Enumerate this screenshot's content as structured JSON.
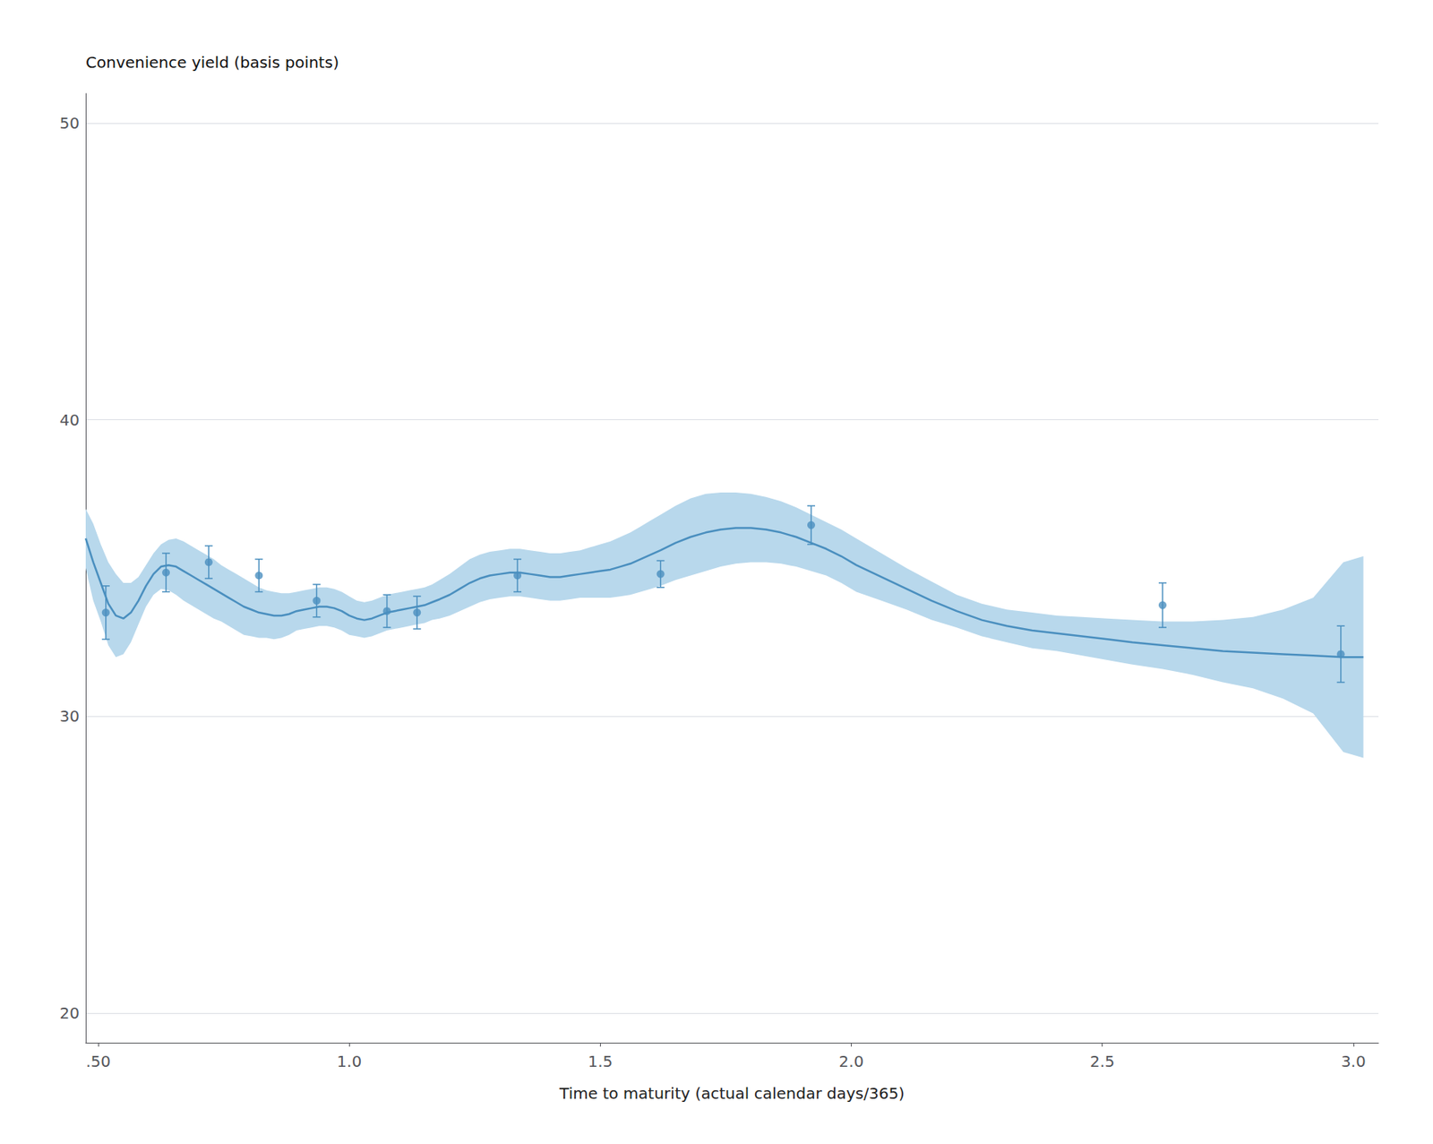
{
  "chart_data": {
    "type": "line",
    "xlabel": "Time to maturity (actual calendar days/365)",
    "ylabel": "Convenience yield (basis points)",
    "xlim": [
      0.475,
      3.05
    ],
    "ylim": [
      19,
      51
    ],
    "xticks": [
      {
        "value": 0.5,
        "label": ".50"
      },
      {
        "value": 1.0,
        "label": "1.0"
      },
      1.5,
      {
        "value": 2.0,
        "label": "2.0"
      },
      2.5,
      {
        "value": 3.0,
        "label": "3.0"
      }
    ],
    "yticks": [
      20,
      30,
      40,
      50
    ],
    "grid": "y",
    "series": [
      {
        "type": "band",
        "color": "#B8D8EC",
        "x": [
          0.475,
          0.49,
          0.505,
          0.52,
          0.535,
          0.55,
          0.565,
          0.58,
          0.595,
          0.61,
          0.625,
          0.64,
          0.655,
          0.67,
          0.685,
          0.7,
          0.715,
          0.73,
          0.745,
          0.76,
          0.775,
          0.79,
          0.805,
          0.82,
          0.835,
          0.85,
          0.865,
          0.88,
          0.895,
          0.91,
          0.925,
          0.94,
          0.955,
          0.97,
          0.985,
          1.0,
          1.015,
          1.03,
          1.045,
          1.06,
          1.075,
          1.09,
          1.105,
          1.12,
          1.135,
          1.15,
          1.165,
          1.18,
          1.2,
          1.22,
          1.24,
          1.26,
          1.28,
          1.3,
          1.32,
          1.34,
          1.36,
          1.38,
          1.4,
          1.42,
          1.44,
          1.46,
          1.48,
          1.5,
          1.52,
          1.54,
          1.56,
          1.58,
          1.6,
          1.62,
          1.65,
          1.68,
          1.71,
          1.74,
          1.77,
          1.8,
          1.83,
          1.86,
          1.89,
          1.92,
          1.95,
          1.98,
          2.01,
          2.06,
          2.11,
          2.16,
          2.21,
          2.26,
          2.31,
          2.36,
          2.41,
          2.46,
          2.51,
          2.56,
          2.62,
          2.68,
          2.74,
          2.8,
          2.86,
          2.92,
          2.98,
          3.02
        ],
        "upper": [
          37.0,
          36.5,
          35.8,
          35.2,
          34.8,
          34.5,
          34.5,
          34.7,
          35.1,
          35.5,
          35.8,
          35.95,
          36.0,
          35.9,
          35.75,
          35.6,
          35.45,
          35.3,
          35.1,
          34.95,
          34.8,
          34.65,
          34.5,
          34.35,
          34.25,
          34.2,
          34.15,
          34.15,
          34.2,
          34.25,
          34.3,
          34.35,
          34.35,
          34.3,
          34.2,
          34.05,
          33.9,
          33.85,
          33.9,
          34.0,
          34.1,
          34.15,
          34.2,
          34.25,
          34.3,
          34.35,
          34.45,
          34.6,
          34.8,
          35.05,
          35.3,
          35.45,
          35.55,
          35.6,
          35.65,
          35.65,
          35.6,
          35.55,
          35.5,
          35.5,
          35.55,
          35.6,
          35.7,
          35.8,
          35.9,
          36.05,
          36.2,
          36.4,
          36.6,
          36.8,
          37.1,
          37.35,
          37.5,
          37.55,
          37.55,
          37.5,
          37.4,
          37.25,
          37.05,
          36.8,
          36.55,
          36.3,
          36.0,
          35.5,
          35.0,
          34.55,
          34.1,
          33.8,
          33.6,
          33.5,
          33.4,
          33.35,
          33.3,
          33.25,
          33.2,
          33.2,
          33.25,
          33.35,
          33.6,
          34.0,
          35.2,
          35.4
        ],
        "lower": [
          35.0,
          33.9,
          33.2,
          32.4,
          32.0,
          32.1,
          32.5,
          33.1,
          33.7,
          34.1,
          34.3,
          34.25,
          34.1,
          33.9,
          33.75,
          33.6,
          33.45,
          33.3,
          33.2,
          33.05,
          32.9,
          32.75,
          32.7,
          32.65,
          32.65,
          32.6,
          32.65,
          32.75,
          32.9,
          32.95,
          33.0,
          33.05,
          33.05,
          33.0,
          32.9,
          32.75,
          32.7,
          32.65,
          32.7,
          32.8,
          32.9,
          32.95,
          33.0,
          33.05,
          33.1,
          33.15,
          33.25,
          33.3,
          33.4,
          33.55,
          33.7,
          33.85,
          33.95,
          34.0,
          34.05,
          34.05,
          34.0,
          33.95,
          33.9,
          33.9,
          33.95,
          34.0,
          34.0,
          34.0,
          34.0,
          34.05,
          34.1,
          34.2,
          34.3,
          34.4,
          34.6,
          34.75,
          34.9,
          35.05,
          35.15,
          35.2,
          35.2,
          35.15,
          35.05,
          34.9,
          34.75,
          34.5,
          34.2,
          33.9,
          33.6,
          33.25,
          33.0,
          32.7,
          32.5,
          32.3,
          32.2,
          32.05,
          31.9,
          31.75,
          31.6,
          31.4,
          31.15,
          30.95,
          30.6,
          30.1,
          28.8,
          28.6
        ]
      },
      {
        "type": "line",
        "color": "#4A8FBF",
        "x": [
          0.475,
          0.49,
          0.505,
          0.52,
          0.535,
          0.55,
          0.565,
          0.58,
          0.595,
          0.61,
          0.625,
          0.64,
          0.655,
          0.67,
          0.685,
          0.7,
          0.715,
          0.73,
          0.745,
          0.76,
          0.775,
          0.79,
          0.805,
          0.82,
          0.835,
          0.85,
          0.865,
          0.88,
          0.895,
          0.91,
          0.925,
          0.94,
          0.955,
          0.97,
          0.985,
          1.0,
          1.015,
          1.03,
          1.045,
          1.06,
          1.075,
          1.09,
          1.105,
          1.12,
          1.135,
          1.15,
          1.165,
          1.18,
          1.2,
          1.22,
          1.24,
          1.26,
          1.28,
          1.3,
          1.32,
          1.34,
          1.36,
          1.38,
          1.4,
          1.42,
          1.44,
          1.46,
          1.48,
          1.5,
          1.52,
          1.54,
          1.56,
          1.58,
          1.6,
          1.62,
          1.65,
          1.68,
          1.71,
          1.74,
          1.77,
          1.8,
          1.83,
          1.86,
          1.89,
          1.92,
          1.95,
          1.98,
          2.01,
          2.06,
          2.11,
          2.16,
          2.21,
          2.26,
          2.31,
          2.36,
          2.41,
          2.46,
          2.51,
          2.56,
          2.62,
          2.68,
          2.74,
          2.8,
          2.86,
          2.92,
          2.98,
          3.02
        ],
        "values": [
          36.0,
          35.2,
          34.5,
          33.8,
          33.4,
          33.3,
          33.5,
          33.9,
          34.4,
          34.8,
          35.05,
          35.1,
          35.05,
          34.9,
          34.75,
          34.6,
          34.45,
          34.3,
          34.15,
          34.0,
          33.85,
          33.7,
          33.6,
          33.5,
          33.45,
          33.4,
          33.4,
          33.45,
          33.55,
          33.6,
          33.65,
          33.7,
          33.7,
          33.65,
          33.55,
          33.4,
          33.3,
          33.25,
          33.3,
          33.4,
          33.5,
          33.55,
          33.6,
          33.65,
          33.7,
          33.75,
          33.85,
          33.95,
          34.1,
          34.3,
          34.5,
          34.65,
          34.75,
          34.8,
          34.85,
          34.85,
          34.8,
          34.75,
          34.7,
          34.7,
          34.75,
          34.8,
          34.85,
          34.9,
          34.95,
          35.05,
          35.15,
          35.3,
          35.45,
          35.6,
          35.85,
          36.05,
          36.2,
          36.3,
          36.35,
          36.35,
          36.3,
          36.2,
          36.05,
          35.85,
          35.65,
          35.4,
          35.1,
          34.7,
          34.3,
          33.9,
          33.55,
          33.25,
          33.05,
          32.9,
          32.8,
          32.7,
          32.6,
          32.5,
          32.4,
          32.3,
          32.2,
          32.15,
          32.1,
          32.05,
          32.0,
          32.0
        ]
      },
      {
        "type": "errorbar",
        "color": "#4A8FBF",
        "marker": "circle",
        "x": [
          0.515,
          0.635,
          0.72,
          0.82,
          0.935,
          1.075,
          1.135,
          1.335,
          1.62,
          1.92,
          2.62,
          2.975
        ],
        "values": [
          33.5,
          34.85,
          35.2,
          34.75,
          33.9,
          33.55,
          33.5,
          34.75,
          34.8,
          36.45,
          33.75,
          32.1
        ],
        "error_lo": [
          0.9,
          0.65,
          0.55,
          0.55,
          0.55,
          0.55,
          0.55,
          0.55,
          0.45,
          0.65,
          0.75,
          0.95
        ],
        "error_hi": [
          0.9,
          0.65,
          0.55,
          0.55,
          0.55,
          0.55,
          0.55,
          0.55,
          0.45,
          0.65,
          0.75,
          0.95
        ]
      }
    ]
  }
}
